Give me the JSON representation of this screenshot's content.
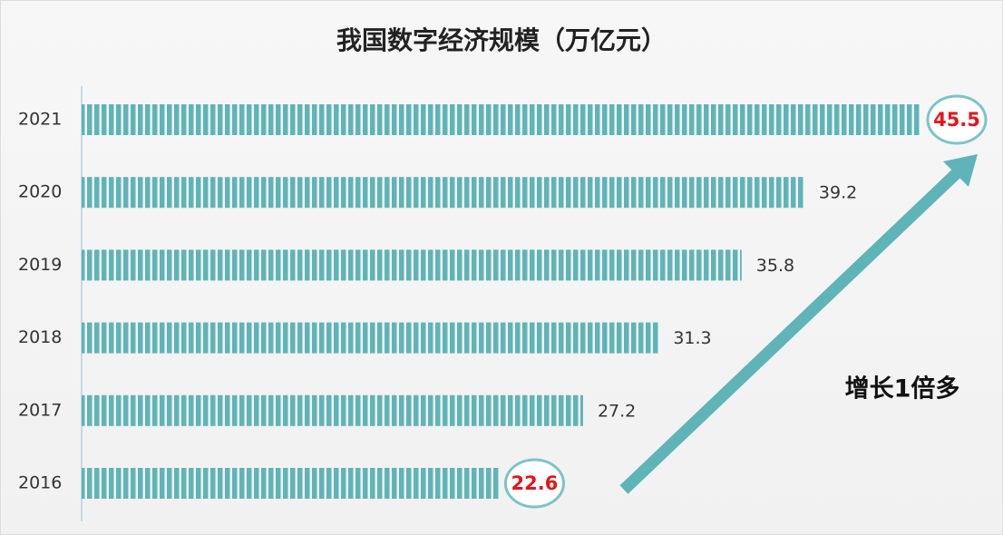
{
  "chart_data": {
    "type": "barh",
    "title": "我国数字经济规模（万亿元）",
    "categories": [
      "2021",
      "2020",
      "2019",
      "2018",
      "2017",
      "2016"
    ],
    "values": [
      45.5,
      39.2,
      35.8,
      31.3,
      27.2,
      22.6
    ],
    "color": "#5fb4b8",
    "label_colors": [
      "#e3161c",
      "#333333",
      "#333333",
      "#333333",
      "#333333",
      "#e3161c"
    ],
    "annotation": "增长1倍多"
  }
}
